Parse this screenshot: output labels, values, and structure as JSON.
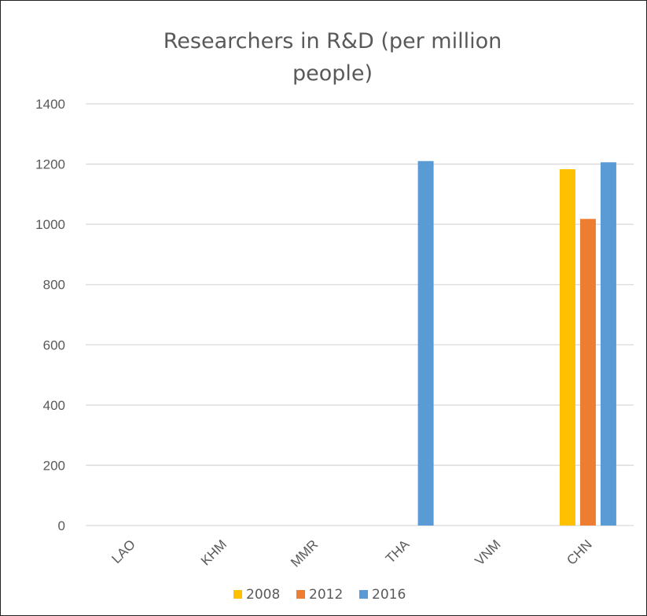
{
  "chart_data": {
    "type": "bar",
    "title": "Researchers in R&D (per million people)",
    "title_lines": [
      "Researchers in R&D (per million",
      "people)"
    ],
    "categories": [
      "LAO",
      "KHM",
      "MMR",
      "THA",
      "VNM",
      "CHN"
    ],
    "series": [
      {
        "name": "2008",
        "color": "#FFC000",
        "values": [
          null,
          null,
          null,
          null,
          null,
          1183
        ]
      },
      {
        "name": "2012",
        "color": "#ED7D31",
        "values": [
          null,
          null,
          null,
          null,
          null,
          1018
        ]
      },
      {
        "name": "2016",
        "color": "#5B9BD5",
        "values": [
          null,
          null,
          null,
          1210,
          null,
          1206
        ]
      }
    ],
    "ylim": [
      0,
      1400
    ],
    "yticks": [
      0,
      200,
      400,
      600,
      800,
      1000,
      1200,
      1400
    ],
    "grid": true,
    "legend_position": "bottom",
    "xlabel": "",
    "ylabel": ""
  }
}
